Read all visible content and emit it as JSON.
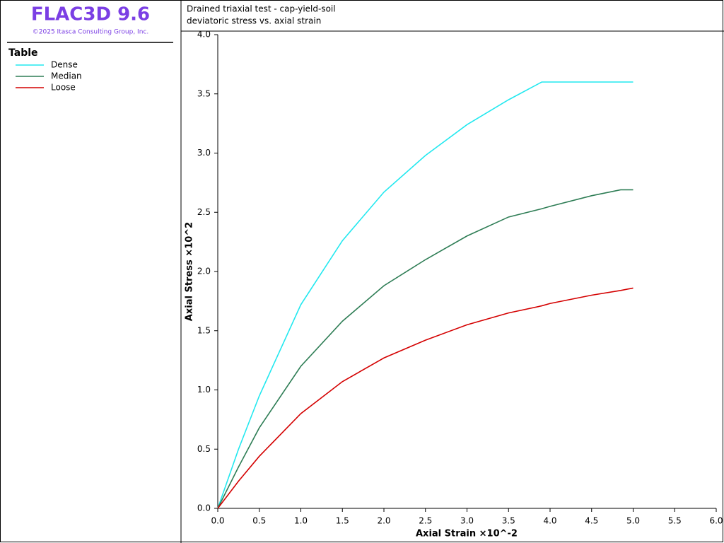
{
  "chart_data": {
    "type": "line",
    "app_title": "FLAC3D 9.6",
    "copyright": "©2025 Itasca Consulting Group, Inc.",
    "legend_title": "Table",
    "title": "Drained triaxial test - cap-yield-soil",
    "subtitle": "deviatoric stress vs. axial strain",
    "x_label": "Axial Strain ×10^-2",
    "y_label": "Axial Stress ×10^2",
    "x": [
      0,
      0.25,
      0.5,
      1,
      1.5,
      2,
      2.5,
      3,
      3.5,
      3.9,
      4,
      4.5,
      4.85,
      5
    ],
    "series": [
      {
        "name": "Dense",
        "color": "#22e8ef",
        "values": [
          0,
          0.5,
          0.95,
          1.72,
          2.26,
          2.67,
          2.98,
          3.24,
          3.45,
          3.6,
          3.6,
          3.6,
          3.6,
          3.6
        ]
      },
      {
        "name": "Median",
        "color": "#2e7d55",
        "values": [
          0,
          0.35,
          0.68,
          1.2,
          1.58,
          1.88,
          2.1,
          2.3,
          2.46,
          2.53,
          2.55,
          2.64,
          2.69,
          2.69
        ]
      },
      {
        "name": "Loose",
        "color": "#d40000",
        "values": [
          0,
          0.23,
          0.44,
          0.8,
          1.07,
          1.27,
          1.42,
          1.55,
          1.65,
          1.71,
          1.73,
          1.8,
          1.84,
          1.86
        ]
      }
    ],
    "xlim": [
      0,
      6
    ],
    "xticks": [
      {
        "value": 0,
        "label": "0.0"
      },
      {
        "value": 0.5,
        "label": "0.5"
      },
      {
        "value": 1,
        "label": "1.0"
      },
      {
        "value": 1.5,
        "label": "1.5"
      },
      {
        "value": 2,
        "label": "2.0"
      },
      {
        "value": 2.5,
        "label": "2.5"
      },
      {
        "value": 3,
        "label": "3.0"
      },
      {
        "value": 3.5,
        "label": "3.5"
      },
      {
        "value": 4,
        "label": "4.0"
      },
      {
        "value": 4.5,
        "label": "4.5"
      },
      {
        "value": 5,
        "label": "5.0"
      },
      {
        "value": 5.5,
        "label": "5.5"
      },
      {
        "value": 6,
        "label": "6.0"
      }
    ],
    "ylim": [
      0,
      4
    ],
    "yticks": [
      {
        "value": 0,
        "label": "0.0"
      },
      {
        "value": 0.5,
        "label": "0.5"
      },
      {
        "value": 1,
        "label": "1.0"
      },
      {
        "value": 1.5,
        "label": "1.5"
      },
      {
        "value": 2,
        "label": "2.0"
      },
      {
        "value": 2.5,
        "label": "2.5"
      },
      {
        "value": 3,
        "label": "3.0"
      },
      {
        "value": 3.5,
        "label": "3.5"
      },
      {
        "value": 4,
        "label": "4.0"
      }
    ],
    "grid": false
  }
}
